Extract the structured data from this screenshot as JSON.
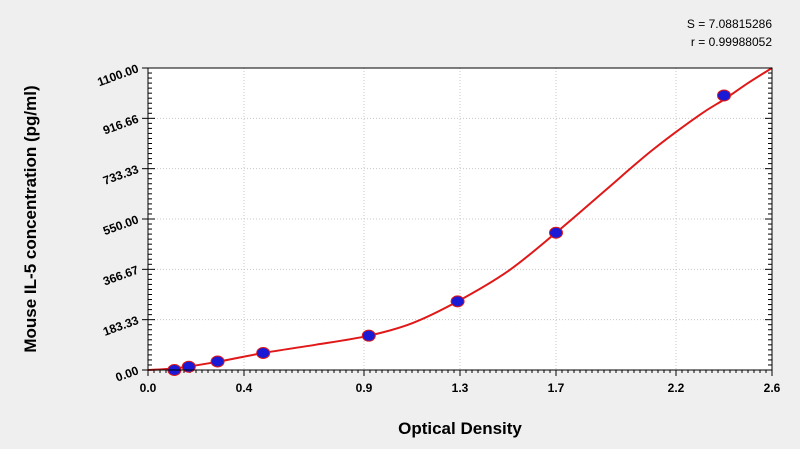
{
  "stats": {
    "s_text": "S = 7.08815286",
    "r_text": "r = 0.99988052"
  },
  "chart_data": {
    "type": "scatter",
    "xlabel": "Optical Density",
    "ylabel": "Mouse IL-5 concentration (pg/ml)",
    "xlim": [
      0,
      2.6
    ],
    "ylim": [
      0,
      1100
    ],
    "x_ticks": [
      0.0,
      0.4,
      0.9,
      1.3,
      1.7,
      2.2,
      2.6
    ],
    "x_tick_labels": [
      "0.0",
      "0.4",
      "0.9",
      "1.3",
      "1.7",
      "2.2",
      "2.6"
    ],
    "y_ticks": [
      0,
      183.33,
      366.67,
      550,
      733.33,
      916.66,
      1100
    ],
    "y_tick_labels": [
      "0.00",
      "183.33",
      "366.67",
      "550.00",
      "733.33",
      "916.66",
      "1100.00"
    ],
    "grid": true,
    "points": [
      {
        "x": 0.11,
        "y": 0
      },
      {
        "x": 0.17,
        "y": 12
      },
      {
        "x": 0.29,
        "y": 31
      },
      {
        "x": 0.48,
        "y": 62
      },
      {
        "x": 0.92,
        "y": 125
      },
      {
        "x": 1.29,
        "y": 250
      },
      {
        "x": 1.7,
        "y": 500
      },
      {
        "x": 2.4,
        "y": 1000
      }
    ],
    "curve": {
      "x": [
        0.0,
        0.11,
        0.29,
        0.48,
        0.7,
        0.92,
        1.1,
        1.29,
        1.5,
        1.7,
        1.9,
        2.1,
        2.3,
        2.4,
        2.5,
        2.6
      ],
      "y": [
        0,
        6,
        30,
        62,
        92,
        125,
        170,
        250,
        360,
        500,
        650,
        800,
        930,
        985,
        1045,
        1100
      ]
    },
    "colors": {
      "point": "#1a1ad6",
      "curve": "#e01818",
      "grid": "#c8c8c8"
    }
  }
}
